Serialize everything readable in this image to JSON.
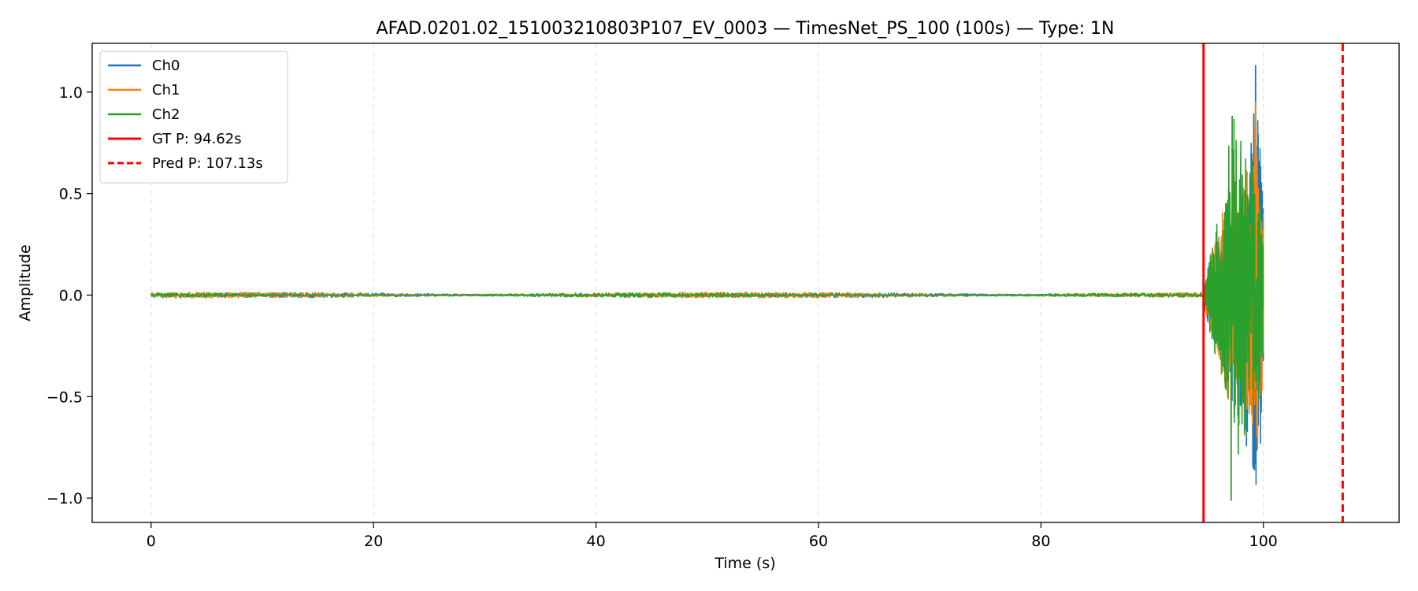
{
  "chart_data": {
    "type": "line",
    "title": "AFAD.0201.02_151003210803P107_EV_0003 — TimesNet_PS_100 (100s) — Type: 1N",
    "xlabel": "Time (s)",
    "ylabel": "Amplitude",
    "xlim": [
      -5.3,
      112.2
    ],
    "ylim": [
      -1.12,
      1.24
    ],
    "xticks": [
      0,
      20,
      40,
      60,
      80,
      100
    ],
    "xtick_labels": [
      "0",
      "20",
      "40",
      "60",
      "80",
      "100"
    ],
    "yticks": [
      -1.0,
      -0.5,
      0.0,
      0.5,
      1.0
    ],
    "ytick_labels": [
      "−1.0",
      "−0.5",
      "0.0",
      "0.5",
      "1.0"
    ],
    "grid": "x-dashed",
    "legend_position": "top-left",
    "signal_duration_s": 100,
    "series": [
      {
        "name": "Ch0",
        "color": "#1f77b4",
        "noise_amplitude": 0.012,
        "event_envelope": [
          {
            "t": 94.62,
            "a": 0.05
          },
          {
            "t": 95.5,
            "a": 0.3
          },
          {
            "t": 96.5,
            "a": 0.45
          },
          {
            "t": 97.5,
            "a": 0.6
          },
          {
            "t": 98.5,
            "a": 0.75
          },
          {
            "t": 99.3,
            "a": 1.13
          },
          {
            "t": 100.0,
            "a": 0.65
          }
        ],
        "peak": {
          "t": 99.3,
          "value": 1.13
        },
        "trough": {
          "t": 99.2,
          "value": -0.86
        }
      },
      {
        "name": "Ch1",
        "color": "#ff7f0e",
        "noise_amplitude": 0.015,
        "event_envelope": [
          {
            "t": 94.62,
            "a": 0.05
          },
          {
            "t": 95.5,
            "a": 0.28
          },
          {
            "t": 96.5,
            "a": 0.5
          },
          {
            "t": 97.5,
            "a": 0.65
          },
          {
            "t": 98.5,
            "a": 0.8
          },
          {
            "t": 99.3,
            "a": 0.95
          },
          {
            "t": 100.0,
            "a": 0.6
          }
        ],
        "peak": {
          "t": 99.3,
          "value": 0.95
        },
        "trough": {
          "t": 99.4,
          "value": -0.7
        }
      },
      {
        "name": "Ch2",
        "color": "#2ca02c",
        "noise_amplitude": 0.011,
        "event_envelope": [
          {
            "t": 94.62,
            "a": 0.06
          },
          {
            "t": 95.5,
            "a": 0.3
          },
          {
            "t": 96.5,
            "a": 0.6
          },
          {
            "t": 97.2,
            "a": 0.95
          },
          {
            "t": 98.0,
            "a": 0.8
          },
          {
            "t": 99.0,
            "a": 0.78
          },
          {
            "t": 100.0,
            "a": 0.4
          }
        ],
        "peak": {
          "t": 97.2,
          "value": 0.88
        },
        "trough": {
          "t": 97.1,
          "value": -1.01
        }
      }
    ],
    "vlines": [
      {
        "name": "GT P: 94.62s",
        "x": 94.62,
        "color": "#ff0000",
        "style": "solid"
      },
      {
        "name": "Pred P: 107.13s",
        "x": 107.13,
        "color": "#ff0000",
        "style": "dashed"
      }
    ]
  }
}
